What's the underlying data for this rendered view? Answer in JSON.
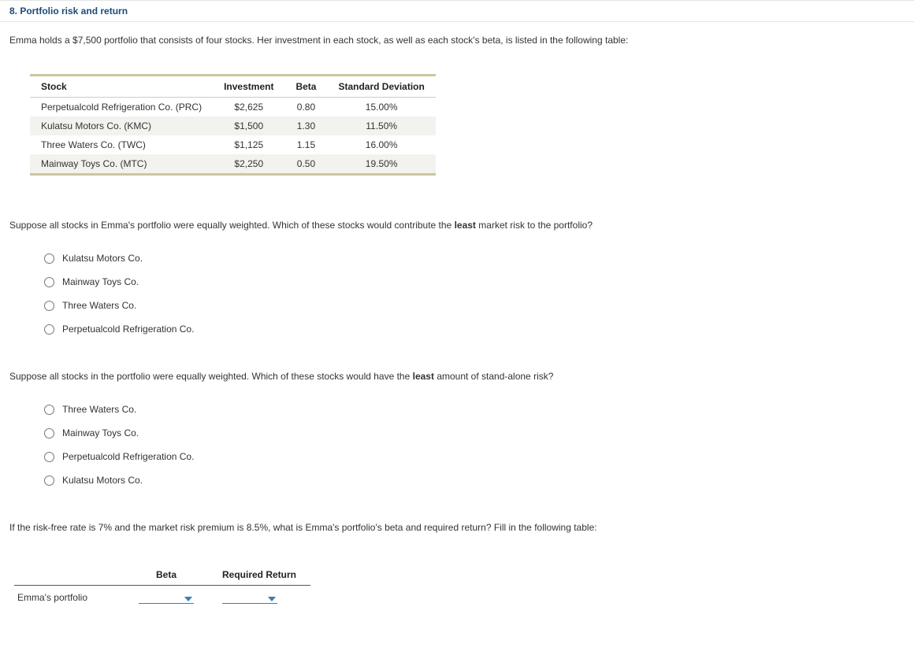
{
  "header": {
    "title": "8. Portfolio risk and return"
  },
  "intro": "Emma holds a $7,500 portfolio that consists of four stocks. Her investment in each stock, as well as each stock's beta, is listed in the following table:",
  "stock_table": {
    "columns": [
      "Stock",
      "Investment",
      "Beta",
      "Standard Deviation"
    ],
    "col_align": [
      "left",
      "center",
      "center",
      "center"
    ],
    "rows": [
      {
        "stock": "Perpetualcold Refrigeration Co. (PRC)",
        "investment": "$2,625",
        "beta": "0.80",
        "sd": "15.00%",
        "alt": false
      },
      {
        "stock": "Kulatsu Motors Co. (KMC)",
        "investment": "$1,500",
        "beta": "1.30",
        "sd": "11.50%",
        "alt": true
      },
      {
        "stock": "Three Waters Co. (TWC)",
        "investment": "$1,125",
        "beta": "1.15",
        "sd": "16.00%",
        "alt": false
      },
      {
        "stock": "Mainway Toys Co. (MTC)",
        "investment": "$2,250",
        "beta": "0.50",
        "sd": "19.50%",
        "alt": true
      }
    ],
    "border_accent_color": "#cdc6a0",
    "alt_row_color": "#f2f2ee"
  },
  "question1": {
    "prompt_pre": "Suppose all stocks in Emma's portfolio were equally weighted. Which of these stocks would contribute the ",
    "prompt_bold": "least",
    "prompt_post": " market risk to the portfolio?",
    "options": [
      "Kulatsu Motors Co.",
      "Mainway Toys Co.",
      "Three Waters Co.",
      "Perpetualcold Refrigeration Co."
    ]
  },
  "question2": {
    "prompt_pre": "Suppose all stocks in the portfolio were equally weighted. Which of these stocks would have the ",
    "prompt_bold": "least",
    "prompt_post": " amount of stand-alone risk?",
    "options": [
      "Three Waters Co.",
      "Mainway Toys Co.",
      "Perpetualcold Refrigeration Co.",
      "Kulatsu Motors Co."
    ]
  },
  "question3": {
    "prompt": "If the risk-free rate is 7% and the market risk premium is 8.5%, what is Emma's portfolio's beta and required return? Fill in the following table:"
  },
  "fill_table": {
    "columns": [
      "Beta",
      "Required Return"
    ],
    "row_label": "Emma's portfolio",
    "dropdown_color": "#3b7db5"
  }
}
